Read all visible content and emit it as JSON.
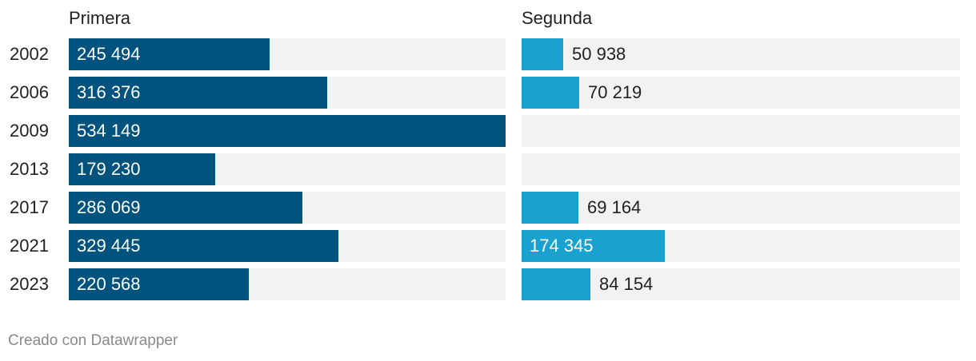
{
  "colors": {
    "primera": "#00537c",
    "segunda": "#19a2cf",
    "track": "#f2f2f2"
  },
  "chart_data": {
    "type": "bar",
    "categories": [
      "2002",
      "2006",
      "2009",
      "2013",
      "2017",
      "2021",
      "2023"
    ],
    "panels": [
      {
        "title": "Primera",
        "values": [
          245494,
          316376,
          534149,
          179230,
          286069,
          329445,
          220568
        ],
        "labels": [
          "245 494",
          "316 376",
          "534 149",
          "179 230",
          "286 069",
          "329 445",
          "220 568"
        ]
      },
      {
        "title": "Segunda",
        "values": [
          50938,
          70219,
          null,
          null,
          69164,
          174345,
          84154
        ],
        "labels": [
          "50 938",
          "70 219",
          "",
          "",
          "69 164",
          "174 345",
          "84 154"
        ]
      }
    ],
    "xlim": [
      0,
      534149
    ]
  },
  "credit": "Creado con Datawrapper"
}
